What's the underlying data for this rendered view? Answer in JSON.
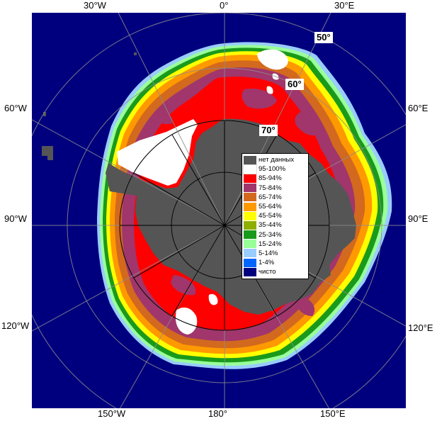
{
  "map": {
    "projection": "south-polar-stereographic",
    "colors": {
      "ocean": "#00007f",
      "land": "#555555",
      "graticule": "#8c8c8c"
    }
  },
  "longitude_labels": {
    "top": [
      "30°W",
      "0°",
      "30°E"
    ],
    "left": [
      "60°W",
      "90°W",
      "120°W"
    ],
    "right": [
      "60°E",
      "90°E",
      "120°E"
    ],
    "bottom": [
      "150°W",
      "180°",
      "150°E"
    ]
  },
  "latitude_labels": [
    "50°",
    "60°",
    "70°"
  ],
  "legend": {
    "items": [
      {
        "label": "нет данных",
        "color": "#555555"
      },
      {
        "label": "95-100%",
        "color": "#ffffff"
      },
      {
        "label": "85-94%",
        "color": "#ff0000"
      },
      {
        "label": "75-84%",
        "color": "#a0366b"
      },
      {
        "label": "65-74%",
        "color": "#d2691e"
      },
      {
        "label": "55-64%",
        "color": "#ff9900"
      },
      {
        "label": "45-54%",
        "color": "#ffff00"
      },
      {
        "label": "35-44%",
        "color": "#8faf00"
      },
      {
        "label": "25-34%",
        "color": "#1a9a1a"
      },
      {
        "label": "15-24%",
        "color": "#99ff99"
      },
      {
        "label": "5-14%",
        "color": "#99ccff"
      },
      {
        "label": "1-4%",
        "color": "#0066ff"
      },
      {
        "label": "чисто",
        "color": "#00007f"
      }
    ]
  }
}
